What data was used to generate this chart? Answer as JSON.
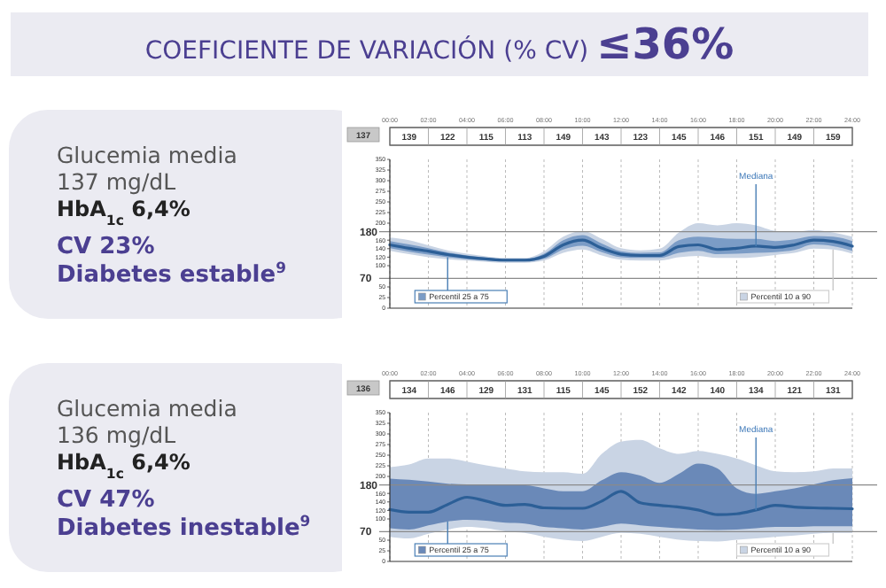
{
  "chart_data": [
    {
      "type": "line",
      "title": "COEFICIENTE DE VARIACIÓN (% CV) ≤36%",
      "grid": "x",
      "xlim": [
        0,
        24
      ],
      "ylim": [
        0,
        350
      ],
      "xticks": [
        {
          "value": 0,
          "label": "00:00"
        },
        {
          "value": 2,
          "label": "02:00"
        },
        {
          "value": 4,
          "label": "04:00"
        },
        {
          "value": 6,
          "label": "06:00"
        },
        {
          "value": 8,
          "label": "08:00"
        },
        {
          "value": 10,
          "label": "10:00"
        },
        {
          "value": 12,
          "label": "12:00"
        },
        {
          "value": 14,
          "label": "14:00"
        },
        {
          "value": 16,
          "label": "16:00"
        },
        {
          "value": 18,
          "label": "18:00"
        },
        {
          "value": 20,
          "label": "20:00"
        },
        {
          "value": 22,
          "label": "22:00"
        },
        {
          "value": 24,
          "label": "24:00"
        }
      ],
      "yticks": [
        0,
        25,
        50,
        100,
        120,
        140,
        160,
        200,
        225,
        250,
        275,
        300,
        325,
        350
      ],
      "ref_lines": [
        {
          "axis": "y",
          "value": 180,
          "label": "180",
          "color": "#8a8a8a"
        },
        {
          "axis": "y",
          "value": 70,
          "label": "70",
          "color": "#8a8a8a"
        }
      ],
      "x": [
        0,
        1,
        2,
        3,
        4,
        5,
        6,
        7,
        8,
        9,
        10,
        11,
        12,
        13,
        14,
        15,
        16,
        17,
        18,
        19,
        20,
        21,
        22,
        23,
        24
      ],
      "series": [
        {
          "name": "Percentil 10 a 90",
          "type": "area",
          "color": "#c9d4e4",
          "values": [
            null,
            null,
            null,
            null,
            null,
            null,
            null,
            null,
            null,
            null,
            null,
            null,
            null,
            null,
            null,
            null,
            null,
            null,
            null,
            null,
            null,
            null,
            null,
            null,
            null
          ],
          "upper": [
            166,
            160,
            148,
            136,
            128,
            122,
            118,
            118,
            134,
            168,
            182,
            163,
            141,
            136,
            140,
            178,
            200,
            195,
            200,
            195,
            182,
            180,
            184,
            178,
            168
          ],
          "lower": [
            135,
            127,
            120,
            115,
            112,
            109,
            107,
            107,
            112,
            130,
            138,
            124,
            114,
            112,
            112,
            120,
            123,
            118,
            118,
            120,
            125,
            130,
            140,
            138,
            128
          ]
        },
        {
          "name": "Percentil 25 a 75",
          "type": "area",
          "color": "#7b9cc6",
          "values": [
            null,
            null,
            null,
            null,
            null,
            null,
            null,
            null,
            null,
            null,
            null,
            null,
            null,
            null,
            null,
            null,
            null,
            null,
            null,
            null,
            null,
            null,
            null,
            null,
            null
          ],
          "upper": [
            158,
            150,
            141,
            131,
            124,
            119,
            116,
            116,
            128,
            160,
            172,
            152,
            134,
            130,
            131,
            160,
            168,
            165,
            163,
            163,
            158,
            162,
            170,
            168,
            158
          ],
          "lower": [
            141,
            133,
            126,
            120,
            115,
            112,
            110,
            110,
            116,
            138,
            147,
            132,
            120,
            118,
            118,
            130,
            135,
            127,
            128,
            130,
            132,
            137,
            150,
            146,
            135
          ]
        },
        {
          "name": "Mediana",
          "color": "#2c5f97",
          "values": [
            149,
            141,
            134,
            126,
            120,
            116,
            113,
            113,
            122,
            149,
            160,
            141,
            127,
            124,
            124,
            145,
            149,
            138,
            141,
            146,
            143,
            149,
            160,
            157,
            146
          ]
        }
      ],
      "annotations": [
        "Glucemia media",
        "137 mg/dL",
        "HbA$_{1c}$ 6,4%",
        "CV 23%",
        "Diabetes estable$^{9}$",
        "137",
        "139",
        "122",
        "115",
        "113",
        "149",
        "143",
        "123",
        "145",
        "146",
        "151",
        "149",
        "159"
      ]
    },
    {
      "type": "line",
      "grid": "x",
      "xlim": [
        0,
        24
      ],
      "ylim": [
        0,
        350
      ],
      "xticks": [
        {
          "value": 0,
          "label": "00:00"
        },
        {
          "value": 2,
          "label": "02:00"
        },
        {
          "value": 4,
          "label": "04:00"
        },
        {
          "value": 6,
          "label": "06:00"
        },
        {
          "value": 8,
          "label": "08:00"
        },
        {
          "value": 10,
          "label": "10:00"
        },
        {
          "value": 12,
          "label": "12:00"
        },
        {
          "value": 14,
          "label": "14:00"
        },
        {
          "value": 16,
          "label": "16:00"
        },
        {
          "value": 18,
          "label": "18:00"
        },
        {
          "value": 20,
          "label": "20:00"
        },
        {
          "value": 22,
          "label": "22:00"
        },
        {
          "value": 24,
          "label": "24:00"
        }
      ],
      "yticks": [
        0,
        25,
        50,
        100,
        120,
        140,
        160,
        200,
        225,
        250,
        275,
        300,
        325,
        350
      ],
      "ref_lines": [
        {
          "axis": "y",
          "value": 180,
          "label": "180",
          "color": "#8a8a8a"
        },
        {
          "axis": "y",
          "value": 70,
          "label": "70",
          "color": "#8a8a8a"
        }
      ],
      "x": [
        0,
        1,
        2,
        3,
        4,
        5,
        6,
        7,
        8,
        9,
        10,
        11,
        12,
        13,
        14,
        15,
        16,
        17,
        18,
        19,
        20,
        21,
        22,
        23,
        24
      ],
      "series": [
        {
          "name": "Percentil 10 a 90",
          "type": "area",
          "color": "#c9d4e4",
          "values": [
            null,
            null,
            null,
            null,
            null,
            null,
            null,
            null,
            null,
            null,
            null,
            null,
            null,
            null,
            null,
            null,
            null,
            null,
            null,
            null,
            null,
            null,
            null,
            null,
            null
          ],
          "upper": [
            222,
            228,
            242,
            242,
            235,
            226,
            219,
            212,
            210,
            210,
            206,
            253,
            282,
            286,
            266,
            253,
            260,
            253,
            242,
            226,
            212,
            210,
            212,
            219,
            219
          ],
          "lower": [
            58,
            54,
            65,
            75,
            81,
            78,
            71,
            67,
            58,
            51,
            48,
            58,
            67,
            65,
            58,
            51,
            48,
            47,
            51,
            54,
            58,
            61,
            65,
            67,
            67
          ]
        },
        {
          "name": "Percentil 25 a 75",
          "type": "area",
          "color": "#6a89b8",
          "values": [
            null,
            null,
            null,
            null,
            null,
            null,
            null,
            null,
            null,
            null,
            null,
            null,
            null,
            null,
            null,
            null,
            null,
            null,
            null,
            null,
            null,
            null,
            null,
            null,
            null
          ],
          "upper": [
            195,
            192,
            188,
            183,
            181,
            181,
            179,
            179,
            172,
            165,
            165,
            191,
            210,
            202,
            185,
            206,
            230,
            219,
            172,
            159,
            165,
            172,
            181,
            191,
            196
          ],
          "lower": [
            78,
            75,
            85,
            94,
            98,
            96,
            91,
            89,
            81,
            78,
            75,
            81,
            89,
            85,
            81,
            78,
            75,
            74,
            75,
            78,
            81,
            81,
            83,
            83,
            83
          ]
        },
        {
          "name": "Mediana",
          "color": "#2c5f97",
          "values": [
            122,
            116,
            116,
            134,
            151,
            142,
            132,
            134,
            126,
            125,
            125,
            142,
            165,
            138,
            132,
            128,
            121,
            110,
            112,
            121,
            132,
            128,
            126,
            125,
            124
          ]
        }
      ],
      "annotations": [
        "Glucemia media",
        "136 mg/dL",
        "HbA$_{1c}$ 6,4%",
        "CV 47%",
        "Diabetes inestable$^{9}$",
        "136",
        "134",
        "146",
        "129",
        "131",
        "115",
        "145",
        "152",
        "142",
        "140",
        "134",
        "121",
        "131"
      ]
    }
  ]
}
